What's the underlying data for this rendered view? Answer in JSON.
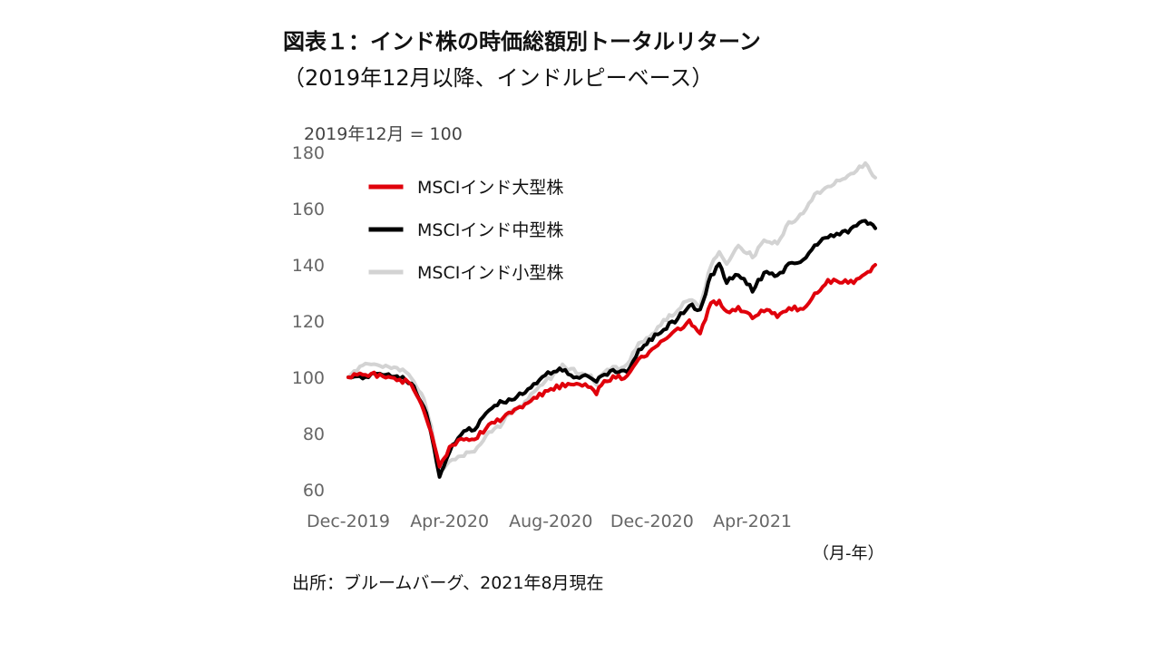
{
  "header": {
    "title": "図表１：インド株の時価総額別トータルリターン",
    "subtitle": "（2019年12月以降、インドルピーベース）"
  },
  "footer": {
    "source": "出所：ブルームバーグ、2021年8月現在",
    "x_unit": "（月-年）"
  },
  "chart_data": {
    "type": "line",
    "title": "図表１：インド株の時価総額別トータルリターン",
    "subtitle": "（2019年12月以降、インドルピーベース）",
    "ylabel": "2019年12月 = 100",
    "xlabel": "（月-年）",
    "ylim": [
      60,
      180
    ],
    "xlim": [
      "2019-12-01",
      "2021-08-27"
    ],
    "y_ticks": [
      60,
      80,
      100,
      120,
      140,
      160,
      180
    ],
    "x_ticks": [
      "2019-12-01",
      "2020-04-01",
      "2020-08-01",
      "2020-12-01",
      "2021-04-01"
    ],
    "x_tick_labels": [
      "Dec-2019",
      "Apr-2020",
      "Aug-2020",
      "Dec-2020",
      "Apr-2021"
    ],
    "grid": false,
    "legend_position": "top-left",
    "series": [
      {
        "name": "MSCIインド大型株",
        "color": "#e0000b",
        "x": [
          "2019-12-01",
          "2019-12-15",
          "2020-01-01",
          "2020-01-15",
          "2020-02-01",
          "2020-02-15",
          "2020-03-01",
          "2020-03-10",
          "2020-03-20",
          "2020-03-25",
          "2020-04-01",
          "2020-04-15",
          "2020-05-01",
          "2020-05-15",
          "2020-06-01",
          "2020-06-15",
          "2020-07-01",
          "2020-07-15",
          "2020-08-01",
          "2020-08-15",
          "2020-09-01",
          "2020-09-15",
          "2020-09-25",
          "2020-10-01",
          "2020-10-15",
          "2020-11-01",
          "2020-11-15",
          "2020-12-01",
          "2020-12-15",
          "2021-01-01",
          "2021-01-15",
          "2021-01-28",
          "2021-02-10",
          "2021-02-20",
          "2021-03-01",
          "2021-03-15",
          "2021-04-01",
          "2021-04-15",
          "2021-05-01",
          "2021-05-15",
          "2021-06-01",
          "2021-06-15",
          "2021-07-01",
          "2021-07-15",
          "2021-08-01",
          "2021-08-15",
          "2021-08-27"
        ],
        "y": [
          100,
          101,
          101,
          100,
          99,
          98,
          88,
          80,
          69,
          71,
          75,
          78,
          78,
          82,
          85,
          88,
          90,
          93,
          96,
          97,
          98,
          97,
          94,
          98,
          100,
          100,
          106,
          110,
          113,
          117,
          120,
          116,
          126,
          127,
          123,
          125,
          121,
          124,
          122,
          125,
          124,
          130,
          134,
          134,
          134,
          136,
          140
        ]
      },
      {
        "name": "MSCIインド中型株",
        "color": "#000000",
        "x": [
          "2019-12-01",
          "2019-12-15",
          "2020-01-01",
          "2020-01-15",
          "2020-02-01",
          "2020-02-15",
          "2020-03-01",
          "2020-03-10",
          "2020-03-20",
          "2020-03-25",
          "2020-04-01",
          "2020-04-15",
          "2020-05-01",
          "2020-05-15",
          "2020-06-01",
          "2020-06-15",
          "2020-07-01",
          "2020-07-15",
          "2020-08-01",
          "2020-08-15",
          "2020-09-01",
          "2020-09-15",
          "2020-09-25",
          "2020-10-01",
          "2020-10-15",
          "2020-11-01",
          "2020-11-15",
          "2020-12-01",
          "2020-12-15",
          "2021-01-01",
          "2021-01-15",
          "2021-01-28",
          "2021-02-10",
          "2021-02-20",
          "2021-03-01",
          "2021-03-15",
          "2021-04-01",
          "2021-04-15",
          "2021-05-01",
          "2021-05-15",
          "2021-06-01",
          "2021-06-15",
          "2021-07-01",
          "2021-07-15",
          "2021-08-01",
          "2021-08-15",
          "2021-08-27"
        ],
        "y": [
          100,
          100,
          101,
          101,
          100,
          98,
          90,
          80,
          64,
          68,
          74,
          80,
          82,
          87,
          91,
          92,
          95,
          98,
          102,
          103,
          100,
          101,
          99,
          100,
          102,
          102,
          110,
          114,
          117,
          121,
          126,
          124,
          136,
          140,
          134,
          137,
          131,
          137,
          136,
          140,
          142,
          147,
          150,
          151,
          153,
          156,
          153
        ]
      },
      {
        "name": "MSCIインド小型株",
        "color": "#d3d3d3",
        "x": [
          "2019-12-01",
          "2019-12-15",
          "2020-01-01",
          "2020-01-15",
          "2020-02-01",
          "2020-02-15",
          "2020-03-01",
          "2020-03-10",
          "2020-03-20",
          "2020-03-25",
          "2020-04-01",
          "2020-04-15",
          "2020-05-01",
          "2020-05-15",
          "2020-06-01",
          "2020-06-15",
          "2020-07-01",
          "2020-07-15",
          "2020-08-01",
          "2020-08-15",
          "2020-09-01",
          "2020-09-15",
          "2020-09-25",
          "2020-10-01",
          "2020-10-15",
          "2020-11-01",
          "2020-11-15",
          "2020-12-01",
          "2020-12-15",
          "2021-01-01",
          "2021-01-15",
          "2021-01-28",
          "2021-02-10",
          "2021-02-20",
          "2021-03-01",
          "2021-03-15",
          "2021-04-01",
          "2021-04-15",
          "2021-05-01",
          "2021-05-15",
          "2021-06-01",
          "2021-06-15",
          "2021-07-01",
          "2021-07-15",
          "2021-08-01",
          "2021-08-15",
          "2021-08-27"
        ],
        "y": [
          100,
          104,
          105,
          104,
          103,
          100,
          92,
          82,
          66,
          68,
          70,
          72,
          74,
          79,
          83,
          88,
          91,
          96,
          100,
          104,
          102,
          101,
          98,
          101,
          103,
          104,
          112,
          115,
          120,
          124,
          128,
          125,
          140,
          145,
          140,
          147,
          143,
          148,
          148,
          155,
          158,
          165,
          168,
          170,
          173,
          176,
          171
        ]
      }
    ]
  }
}
